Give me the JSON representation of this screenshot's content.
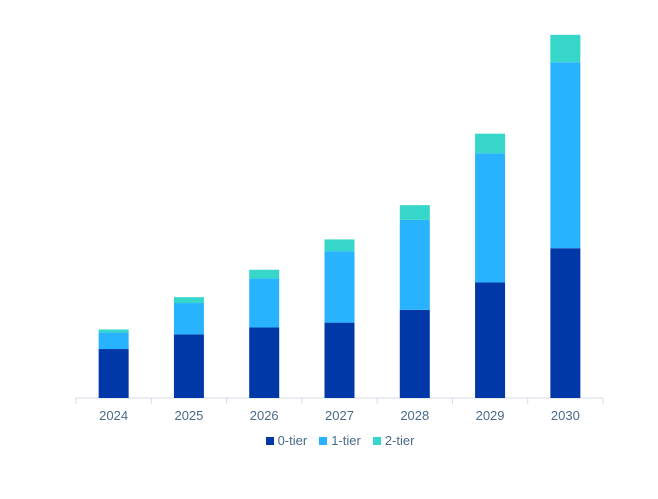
{
  "chart_data": {
    "type": "bar",
    "stacked": true,
    "categories": [
      "2024",
      "2025",
      "2026",
      "2027",
      "2028",
      "2029",
      "2030"
    ],
    "series": [
      {
        "name": "0-tier",
        "color": "#0038a8",
        "values": [
          50,
          65,
          72,
          77,
          90,
          118,
          153
        ]
      },
      {
        "name": "1-tier",
        "color": "#29b3ff",
        "values": [
          17,
          32,
          50,
          73,
          92,
          132,
          190
        ]
      },
      {
        "name": "2-tier",
        "color": "#36d6c8",
        "values": [
          3,
          6,
          9,
          12,
          15,
          20,
          28
        ]
      }
    ],
    "title": "",
    "xlabel": "",
    "ylabel": "",
    "ylim": [
      0,
      380
    ],
    "grid": false,
    "legend_position": "bottom"
  }
}
